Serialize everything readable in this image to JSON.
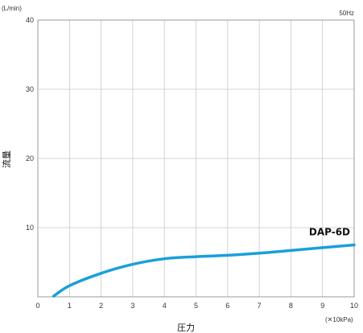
{
  "chart_data": {
    "type": "line",
    "frequency_note": "50Hz",
    "xlabel": "圧力",
    "x_unit": "(✕10kPa)",
    "ylabel": "流量",
    "y_unit": "(L/min)",
    "xlim": [
      0,
      10
    ],
    "ylim": [
      0,
      40
    ],
    "x_ticks": [
      "0",
      "1",
      "2",
      "3",
      "4",
      "5",
      "6",
      "7",
      "8",
      "9",
      "10"
    ],
    "y_ticks": [
      "10",
      "20",
      "30",
      "40"
    ],
    "grid": true,
    "line_color": "#1a9fdc",
    "series": [
      {
        "name": "DAP-6D",
        "points": [
          [
            0.5,
            0.1
          ],
          [
            1,
            1.6
          ],
          [
            2,
            3.4
          ],
          [
            3,
            4.7
          ],
          [
            4,
            5.5
          ],
          [
            5,
            5.8
          ],
          [
            6,
            6.0
          ],
          [
            7,
            6.3
          ],
          [
            8,
            6.7
          ],
          [
            9,
            7.1
          ],
          [
            10,
            7.5
          ]
        ]
      }
    ]
  }
}
